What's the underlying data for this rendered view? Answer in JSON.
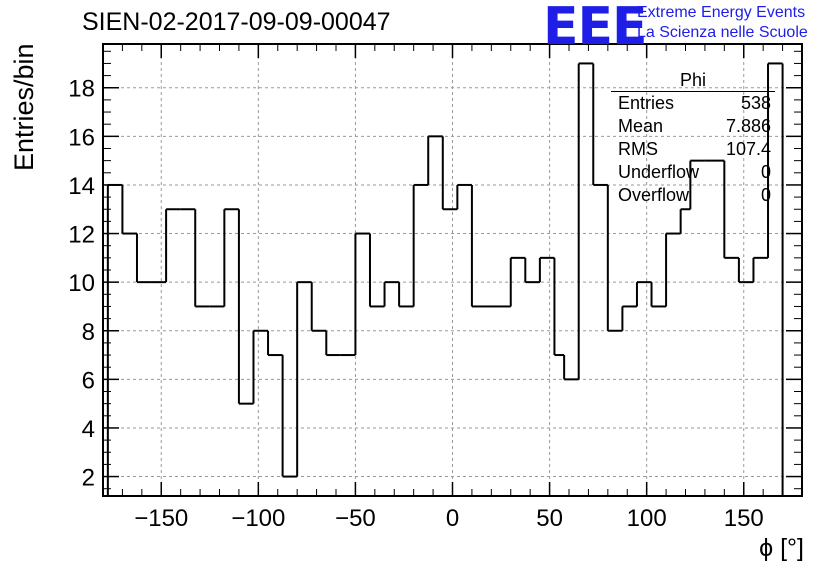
{
  "header": {
    "title": "SIEN-02-2017-09-09-00047",
    "logo": "EEE",
    "logo_line1": "Extreme Energy Events",
    "logo_line2": "La Scienza nelle Scuole"
  },
  "stats": {
    "title": "Phi",
    "rows": [
      {
        "label": "Entries",
        "value": "538"
      },
      {
        "label": "Mean",
        "value": "7.886"
      },
      {
        "label": "RMS",
        "value": "107.4"
      },
      {
        "label": "Underflow",
        "value": "0"
      },
      {
        "label": "Overflow",
        "value": "0"
      }
    ]
  },
  "chart_data": {
    "type": "histogram-step",
    "xlabel": "ϕ [°]",
    "ylabel": "Entries/bin",
    "xlim": [
      -180,
      180
    ],
    "ylim": [
      1.2,
      19.8
    ],
    "x_ticks": [
      -150,
      -100,
      -50,
      0,
      50,
      100,
      150
    ],
    "x_tick_labels": [
      "−150",
      "−100",
      "−50",
      "0",
      "50",
      "100",
      "150"
    ],
    "y_ticks": [
      2,
      4,
      6,
      8,
      10,
      12,
      14,
      16,
      18
    ],
    "grid": true,
    "bin_width": 7.5,
    "bins": [
      {
        "x0": -177.5,
        "x1": -170,
        "value": 14
      },
      {
        "x0": -170,
        "x1": -162.5,
        "value": 12
      },
      {
        "x0": -162.5,
        "x1": -155,
        "value": 10
      },
      {
        "x0": -155,
        "x1": -147.5,
        "value": 10
      },
      {
        "x0": -147.5,
        "x1": -140,
        "value": 13
      },
      {
        "x0": -140,
        "x1": -132.5,
        "value": 13
      },
      {
        "x0": -132.5,
        "x1": -125,
        "value": 9
      },
      {
        "x0": -125,
        "x1": -117.5,
        "value": 9
      },
      {
        "x0": -117.5,
        "x1": -110,
        "value": 13
      },
      {
        "x0": -110,
        "x1": -102.5,
        "value": 5
      },
      {
        "x0": -102.5,
        "x1": -95,
        "value": 8
      },
      {
        "x0": -95,
        "x1": -87.5,
        "value": 7
      },
      {
        "x0": -87.5,
        "x1": -80,
        "value": 2
      },
      {
        "x0": -80,
        "x1": -72.5,
        "value": 10
      },
      {
        "x0": -72.5,
        "x1": -65,
        "value": 8
      },
      {
        "x0": -65,
        "x1": -57.5,
        "value": 7
      },
      {
        "x0": -57.5,
        "x1": -50,
        "value": 7
      },
      {
        "x0": -50,
        "x1": -42.5,
        "value": 12
      },
      {
        "x0": -42.5,
        "x1": -35,
        "value": 9
      },
      {
        "x0": -35,
        "x1": -27.5,
        "value": 10
      },
      {
        "x0": -27.5,
        "x1": -20,
        "value": 9
      },
      {
        "x0": -20,
        "x1": -12.5,
        "value": 14
      },
      {
        "x0": -12.5,
        "x1": -5,
        "value": 16
      },
      {
        "x0": -5,
        "x1": 2.5,
        "value": 13
      },
      {
        "x0": 2.5,
        "x1": 10,
        "value": 14
      },
      {
        "x0": 10,
        "x1": 17.5,
        "value": 9
      },
      {
        "x0": 17.5,
        "x1": 25,
        "value": 9
      },
      {
        "x0": 25,
        "x1": 30,
        "value": 9
      },
      {
        "x0": 30,
        "x1": 37.5,
        "value": 11
      },
      {
        "x0": 37.5,
        "x1": 45,
        "value": 10
      },
      {
        "x0": 45,
        "x1": 52.5,
        "value": 11
      },
      {
        "x0": 52.5,
        "x1": 57.5,
        "value": 7
      },
      {
        "x0": 57.5,
        "x1": 65,
        "value": 6
      },
      {
        "x0": 65,
        "x1": 72.5,
        "value": 19
      },
      {
        "x0": 72.5,
        "x1": 80,
        "value": 14
      },
      {
        "x0": 80,
        "x1": 87.5,
        "value": 8
      },
      {
        "x0": 87.5,
        "x1": 95,
        "value": 9
      },
      {
        "x0": 95,
        "x1": 102.5,
        "value": 10
      },
      {
        "x0": 102.5,
        "x1": 110,
        "value": 9
      },
      {
        "x0": 110,
        "x1": 117.5,
        "value": 12
      },
      {
        "x0": 117.5,
        "x1": 122.5,
        "value": 13
      },
      {
        "x0": 122.5,
        "x1": 130,
        "value": 15
      },
      {
        "x0": 130,
        "x1": 140,
        "value": 15
      },
      {
        "x0": 140,
        "x1": 147.5,
        "value": 11
      },
      {
        "x0": 147.5,
        "x1": 155,
        "value": 10
      },
      {
        "x0": 155,
        "x1": 162.5,
        "value": 11
      },
      {
        "x0": 162.5,
        "x1": 170,
        "value": 19
      }
    ]
  }
}
